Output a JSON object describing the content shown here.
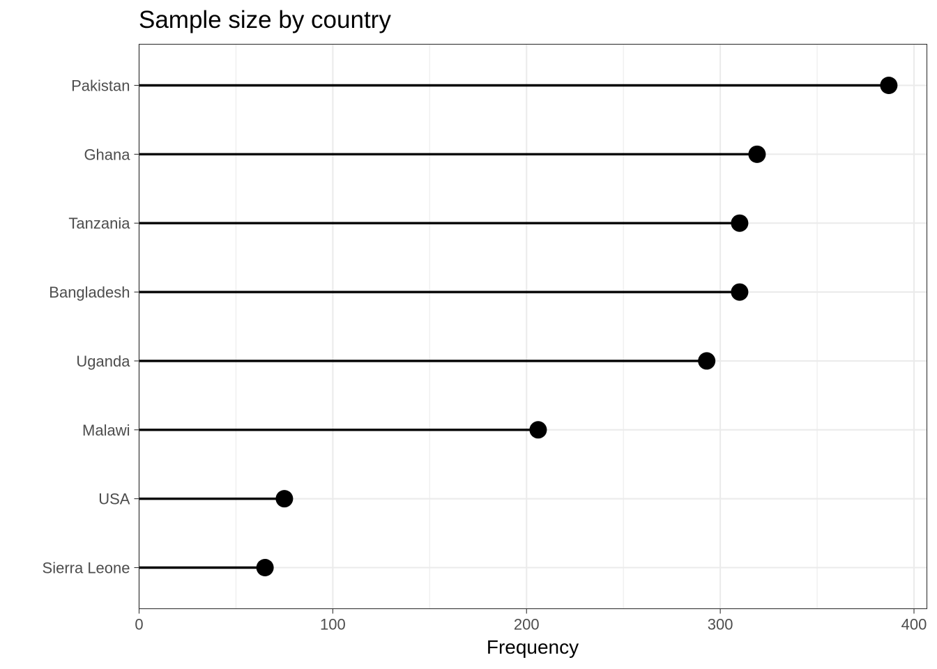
{
  "chart_data": {
    "type": "lollipop",
    "title": "Sample size by country",
    "xlabel": "Frequency",
    "ylabel": "",
    "xlim": [
      0,
      405
    ],
    "x_ticks": [
      0,
      100,
      200,
      300,
      400
    ],
    "categories": [
      "Pakistan",
      "Ghana",
      "Tanzania",
      "Bangladesh",
      "Uganda",
      "Malawi",
      "USA",
      "Sierra Leone"
    ],
    "values": [
      387,
      319,
      310,
      310,
      293,
      206,
      75,
      65
    ],
    "grid": true,
    "legend": "none",
    "colors": {
      "marks": "#000000",
      "grid": "#ebebeb",
      "panel_border": "#333333",
      "tick_label": "#4d4d4d",
      "background": "#ffffff"
    }
  }
}
